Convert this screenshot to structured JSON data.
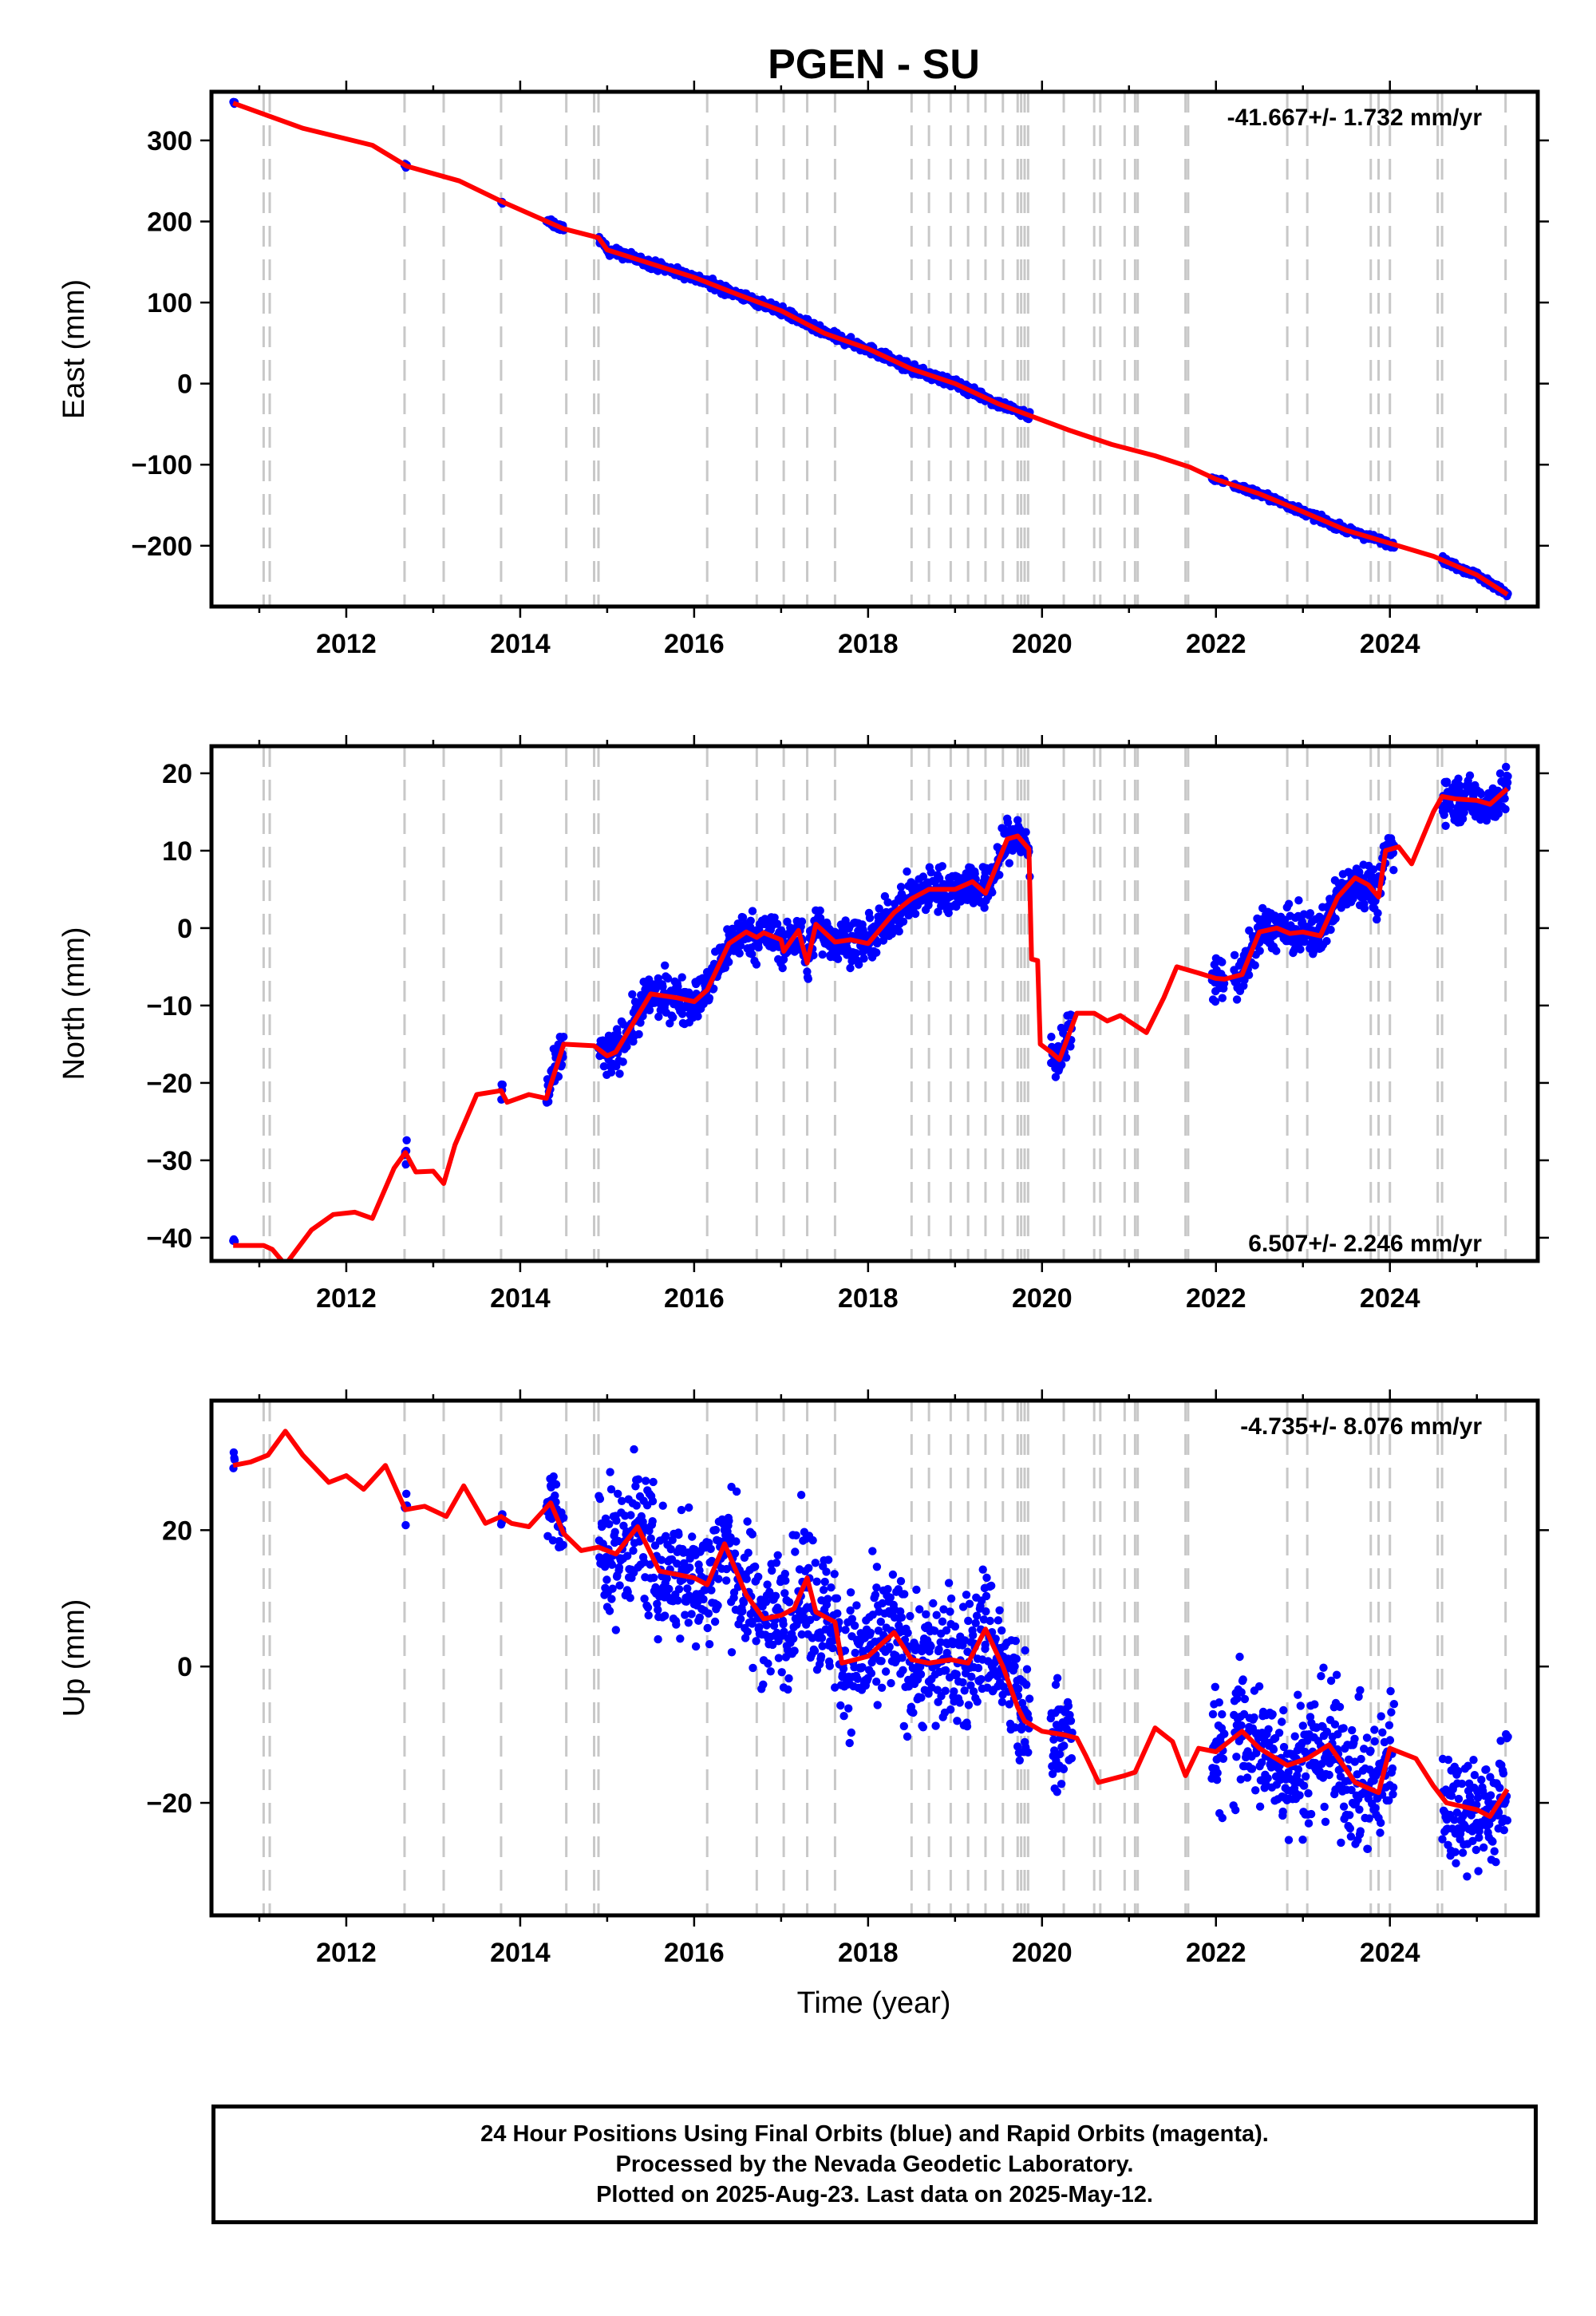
{
  "chart_data": {
    "type": "scatter",
    "title": "PGEN - SU",
    "xlabel": "Time (year)",
    "xlim": [
      2010.45,
      2025.7
    ],
    "xticks": [
      2012,
      2014,
      2016,
      2018,
      2020,
      2022,
      2024
    ],
    "colors": {
      "observations": "#0000ff",
      "model": "#ff0000",
      "events": "#c8c8c8"
    },
    "event_epochs": [
      2011.05,
      2011.12,
      2012.67,
      2013.12,
      2013.78,
      2014.53,
      2014.85,
      2014.9,
      2016.15,
      2016.72,
      2017.03,
      2017.3,
      2017.62,
      2018.5,
      2018.7,
      2018.95,
      2019.15,
      2019.35,
      2019.55,
      2019.72,
      2019.76,
      2019.8,
      2019.84,
      2020.25,
      2020.6,
      2020.67,
      2020.95,
      2021.07,
      2021.1,
      2021.65,
      2021.68,
      2022.82,
      2023.05,
      2023.78,
      2023.87,
      2024.0,
      2024.55,
      2024.6,
      2025.33
    ],
    "panels": [
      {
        "name": "east",
        "ylabel": "East (mm)",
        "ylim": [
          -275,
          360
        ],
        "yticks": [
          300,
          200,
          100,
          0,
          -100,
          -200
        ],
        "rate": "-41.667+/- 1.732 mm/yr",
        "rate_position": "top-right",
        "model": [
          [
            2010.7,
            346
          ],
          [
            2011.5,
            315
          ],
          [
            2012.3,
            294
          ],
          [
            2012.7,
            268
          ],
          [
            2013.3,
            250
          ],
          [
            2013.8,
            224
          ],
          [
            2014.5,
            191
          ],
          [
            2014.9,
            180
          ],
          [
            2015.0,
            165
          ],
          [
            2015.5,
            148
          ],
          [
            2016.0,
            131
          ],
          [
            2016.5,
            110
          ],
          [
            2017.0,
            90
          ],
          [
            2017.5,
            62
          ],
          [
            2018.0,
            43
          ],
          [
            2018.5,
            18
          ],
          [
            2019.0,
            0
          ],
          [
            2019.5,
            -25
          ],
          [
            2019.8,
            -37
          ],
          [
            2020.3,
            -57
          ],
          [
            2020.8,
            -75
          ],
          [
            2021.3,
            -89
          ],
          [
            2021.7,
            -103
          ],
          [
            2022.0,
            -118
          ],
          [
            2022.5,
            -136
          ],
          [
            2023.0,
            -158
          ],
          [
            2023.5,
            -181
          ],
          [
            2024.0,
            -197
          ],
          [
            2024.5,
            -213
          ],
          [
            2025.0,
            -236
          ],
          [
            2025.35,
            -260
          ]
        ],
        "obs_segments": [
          [
            2010.7,
            2010.72,
            2,
            0.5
          ],
          [
            2012.67,
            2012.7,
            2,
            0.5
          ],
          [
            2013.78,
            2013.8,
            2,
            0.5
          ],
          [
            2014.3,
            2014.5,
            3,
            2
          ],
          [
            2014.9,
            2015.0,
            3,
            3
          ],
          [
            2015.0,
            2019.86,
            4,
            70
          ],
          [
            2021.95,
            2022.1,
            2,
            5
          ],
          [
            2022.2,
            2024.05,
            3,
            40
          ],
          [
            2024.6,
            2025.36,
            3,
            45
          ]
        ]
      },
      {
        "name": "north",
        "ylabel": "North (mm)",
        "ylim": [
          -43,
          23.5
        ],
        "yticks": [
          20,
          10,
          0,
          -10,
          -20,
          -30,
          -40
        ],
        "rate": "6.507+/- 2.246 mm/yr",
        "rate_position": "bottom-right",
        "model": [
          [
            2010.7,
            -41
          ],
          [
            2011.05,
            -41
          ],
          [
            2011.15,
            -41.5
          ],
          [
            2011.3,
            -43.5
          ],
          [
            2011.6,
            -39
          ],
          [
            2011.85,
            -37
          ],
          [
            2012.1,
            -36.7
          ],
          [
            2012.3,
            -37.5
          ],
          [
            2012.55,
            -31
          ],
          [
            2012.68,
            -29
          ],
          [
            2012.8,
            -31.5
          ],
          [
            2013.0,
            -31.4
          ],
          [
            2013.12,
            -33
          ],
          [
            2013.25,
            -28
          ],
          [
            2013.5,
            -21.5
          ],
          [
            2013.78,
            -21
          ],
          [
            2013.85,
            -22.5
          ],
          [
            2014.1,
            -21.5
          ],
          [
            2014.3,
            -22
          ],
          [
            2014.5,
            -15
          ],
          [
            2014.85,
            -15.2
          ],
          [
            2015.0,
            -16.5
          ],
          [
            2015.1,
            -16
          ],
          [
            2015.5,
            -8.5
          ],
          [
            2015.8,
            -9
          ],
          [
            2016.0,
            -9.5
          ],
          [
            2016.15,
            -8
          ],
          [
            2016.4,
            -2
          ],
          [
            2016.6,
            -0.5
          ],
          [
            2016.72,
            -1.2
          ],
          [
            2016.8,
            -0.6
          ],
          [
            2017.0,
            -1.5
          ],
          [
            2017.03,
            -3
          ],
          [
            2017.2,
            -0.3
          ],
          [
            2017.3,
            -4.5
          ],
          [
            2017.4,
            0.5
          ],
          [
            2017.62,
            -1.8
          ],
          [
            2017.8,
            -1.5
          ],
          [
            2018.0,
            -2
          ],
          [
            2018.3,
            2
          ],
          [
            2018.5,
            3.8
          ],
          [
            2018.7,
            5
          ],
          [
            2019.0,
            5
          ],
          [
            2019.2,
            6
          ],
          [
            2019.35,
            4.5
          ],
          [
            2019.6,
            11.5
          ],
          [
            2019.72,
            11.9
          ],
          [
            2019.85,
            10.2
          ],
          [
            2019.88,
            -4
          ],
          [
            2019.95,
            -4.2
          ],
          [
            2019.98,
            -15
          ],
          [
            2020.1,
            -16
          ],
          [
            2020.2,
            -17
          ],
          [
            2020.4,
            -11
          ],
          [
            2020.6,
            -11
          ],
          [
            2020.75,
            -12
          ],
          [
            2020.9,
            -11.3
          ],
          [
            2021.2,
            -13.5
          ],
          [
            2021.4,
            -9
          ],
          [
            2021.55,
            -5
          ],
          [
            2021.8,
            -5.8
          ],
          [
            2022.0,
            -6.5
          ],
          [
            2022.1,
            -6.6
          ],
          [
            2022.3,
            -6
          ],
          [
            2022.5,
            -0.5
          ],
          [
            2022.7,
            0
          ],
          [
            2022.85,
            -0.7
          ],
          [
            2023.0,
            -0.5
          ],
          [
            2023.2,
            -1
          ],
          [
            2023.4,
            4
          ],
          [
            2023.6,
            6.5
          ],
          [
            2023.75,
            5.6
          ],
          [
            2023.87,
            4
          ],
          [
            2023.95,
            10
          ],
          [
            2024.1,
            10.5
          ],
          [
            2024.25,
            8.3
          ],
          [
            2024.5,
            15
          ],
          [
            2024.6,
            17
          ],
          [
            2024.75,
            16.7
          ],
          [
            2025.0,
            16.5
          ],
          [
            2025.15,
            16
          ],
          [
            2025.35,
            18
          ]
        ],
        "obs_segments": [
          [
            2010.7,
            2010.72,
            2,
            0.8
          ],
          [
            2012.67,
            2012.7,
            2,
            1
          ],
          [
            2013.78,
            2013.8,
            2,
            0.8
          ],
          [
            2014.3,
            2014.5,
            2,
            2
          ],
          [
            2014.9,
            2019.86,
            2,
            70
          ],
          [
            2020.1,
            2020.35,
            2,
            2
          ],
          [
            2021.95,
            2022.1,
            2,
            2
          ],
          [
            2022.2,
            2024.05,
            2,
            40
          ],
          [
            2024.6,
            2025.36,
            2,
            45
          ]
        ]
      },
      {
        "name": "up",
        "ylabel": "Up (mm)",
        "ylim": [
          -36.5,
          39
        ],
        "yticks": [
          20,
          0,
          -20
        ],
        "rate": "-4.735+/- 8.076 mm/yr",
        "rate_position": "top-right",
        "model": [
          [
            2010.7,
            29.5
          ],
          [
            2010.9,
            30
          ],
          [
            2011.1,
            31
          ],
          [
            2011.3,
            34.5
          ],
          [
            2011.5,
            31
          ],
          [
            2011.8,
            27
          ],
          [
            2012.0,
            28
          ],
          [
            2012.2,
            26
          ],
          [
            2012.45,
            29.5
          ],
          [
            2012.68,
            23
          ],
          [
            2012.9,
            23.5
          ],
          [
            2013.15,
            22
          ],
          [
            2013.35,
            26.5
          ],
          [
            2013.6,
            21
          ],
          [
            2013.78,
            22
          ],
          [
            2013.9,
            21
          ],
          [
            2014.1,
            20.5
          ],
          [
            2014.35,
            24
          ],
          [
            2014.5,
            19.5
          ],
          [
            2014.7,
            17
          ],
          [
            2014.9,
            17.5
          ],
          [
            2015.1,
            16.5
          ],
          [
            2015.35,
            20.5
          ],
          [
            2015.6,
            14
          ],
          [
            2016.0,
            13
          ],
          [
            2016.15,
            12
          ],
          [
            2016.35,
            18
          ],
          [
            2016.6,
            10.5
          ],
          [
            2016.8,
            7
          ],
          [
            2017.0,
            7.5
          ],
          [
            2017.15,
            8.5
          ],
          [
            2017.3,
            13
          ],
          [
            2017.4,
            8
          ],
          [
            2017.62,
            6.5
          ],
          [
            2017.7,
            0.5
          ],
          [
            2018.0,
            1.5
          ],
          [
            2018.3,
            5
          ],
          [
            2018.5,
            1
          ],
          [
            2018.7,
            0.5
          ],
          [
            2018.95,
            1
          ],
          [
            2019.15,
            0.5
          ],
          [
            2019.35,
            5.5
          ],
          [
            2019.55,
            0
          ],
          [
            2019.72,
            -6
          ],
          [
            2019.8,
            -8
          ],
          [
            2020.0,
            -9.5
          ],
          [
            2020.25,
            -10
          ],
          [
            2020.4,
            -10.5
          ],
          [
            2020.5,
            -13
          ],
          [
            2020.65,
            -17
          ],
          [
            2020.95,
            -16
          ],
          [
            2021.07,
            -15.5
          ],
          [
            2021.3,
            -9
          ],
          [
            2021.5,
            -11
          ],
          [
            2021.65,
            -16
          ],
          [
            2021.8,
            -12
          ],
          [
            2022.0,
            -12.5
          ],
          [
            2022.3,
            -9.5
          ],
          [
            2022.5,
            -12
          ],
          [
            2022.82,
            -14.5
          ],
          [
            2023.05,
            -13.5
          ],
          [
            2023.3,
            -11.5
          ],
          [
            2023.6,
            -17
          ],
          [
            2023.87,
            -18.5
          ],
          [
            2024.0,
            -12
          ],
          [
            2024.3,
            -13.5
          ],
          [
            2024.5,
            -17.5
          ],
          [
            2024.65,
            -20
          ],
          [
            2025.0,
            -21
          ],
          [
            2025.15,
            -22
          ],
          [
            2025.35,
            -18
          ]
        ],
        "obs_segments": [
          [
            2010.7,
            2010.72,
            3,
            6
          ],
          [
            2012.67,
            2012.7,
            2,
            4
          ],
          [
            2013.78,
            2013.8,
            2,
            4
          ],
          [
            2014.3,
            2014.5,
            4,
            4
          ],
          [
            2014.9,
            2019.86,
            7,
            70
          ],
          [
            2020.1,
            2020.35,
            6,
            2
          ],
          [
            2021.95,
            2022.1,
            6,
            2
          ],
          [
            2022.2,
            2024.05,
            7,
            40
          ],
          [
            2024.6,
            2025.36,
            6,
            45
          ]
        ]
      }
    ]
  },
  "footer": {
    "line1": "24 Hour Positions Using Final Orbits (blue) and Rapid Orbits (magenta).",
    "line2": "Processed by the Nevada Geodetic Laboratory.",
    "line3": "Plotted on 2025-Aug-23. Last data on 2025-May-12."
  }
}
